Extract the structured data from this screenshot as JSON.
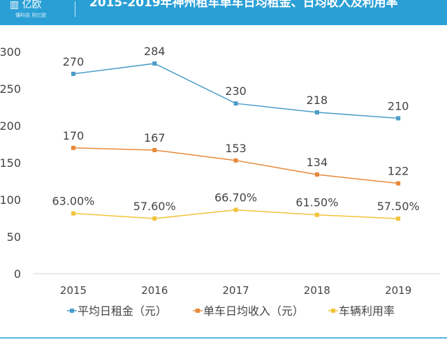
{
  "header": {
    "logo": "▥ 亿欧",
    "slogan": "懂科技 用亿欧",
    "title": "2015-2019年神州租车单车日均租金、日均收入及利用率"
  },
  "chart_data": {
    "type": "line",
    "title": "2015-2019年神州租车单车日均租金、日均收入及利用率",
    "categories": [
      "2015",
      "2016",
      "2017",
      "2018",
      "2019"
    ],
    "ylim": [
      0,
      300
    ],
    "yticks": [
      0,
      50,
      100,
      150,
      200,
      250,
      300
    ],
    "grid": false,
    "legend": "bottom",
    "series": [
      {
        "name": "平均日租金（元）",
        "values": [
          270,
          284,
          230,
          218,
          210
        ],
        "labels": [
          "270",
          "284",
          "230",
          "218",
          "210"
        ],
        "color": "#4a9cc9",
        "axis": "primary"
      },
      {
        "name": "单车日均收入（元）",
        "values": [
          170,
          167,
          153,
          134,
          122
        ],
        "labels": [
          "170",
          "167",
          "153",
          "134",
          "122"
        ],
        "color": "#e8893a",
        "axis": "primary"
      },
      {
        "name": "车辆利用率",
        "values": [
          63.0,
          57.6,
          66.7,
          61.5,
          57.5
        ],
        "labels": [
          "63.00%",
          "57.60%",
          "66.70%",
          "61.50%",
          "57.50%"
        ],
        "color": "#f2c43a",
        "axis": "secondary-hidden"
      }
    ]
  }
}
